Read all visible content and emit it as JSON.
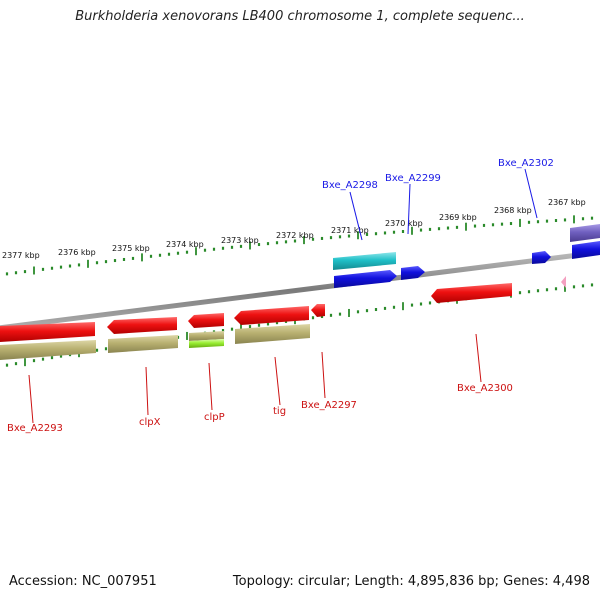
{
  "title": "Burkholderia xenovorans LB400 chromosome 1, complete sequenc...",
  "footer": {
    "accession": "Accession: NC_007951",
    "stats": "Topology: circular; Length: 4,895,836 bp; Genes: 4,498"
  },
  "ticks": [
    {
      "label": "2377 kbp"
    },
    {
      "label": "2376 kbp"
    },
    {
      "label": "2375 kbp"
    },
    {
      "label": "2374 kbp"
    },
    {
      "label": "2373 kbp"
    },
    {
      "label": "2372 kbp"
    },
    {
      "label": "2371 kbp"
    },
    {
      "label": "2370 kbp"
    },
    {
      "label": "2369 kbp"
    },
    {
      "label": "2368 kbp"
    },
    {
      "label": "2367 kbp"
    }
  ],
  "gene_labels": {
    "forward": [
      "Bxe_A2298",
      "Bxe_A2299",
      "Bxe_A2302"
    ],
    "reverse": [
      "Bxe_A2293",
      "clpX",
      "clpP",
      "tig",
      "Bxe_A2297",
      "Bxe_A2300"
    ]
  },
  "colors": {
    "forward_label": "#1a1ae6",
    "reverse_label": "#cc1111",
    "red_feature": "#ee1111",
    "blue_feature": "#1111dd",
    "cyan_feature": "#20c0c8",
    "khaki_feature": "#b8b070",
    "lime_feature": "#99ee33",
    "purple_feature": "#7060c0",
    "pink_feature": "#f4a0c0",
    "tick_color": "#2a8a2a",
    "backbone": "#8a8a8a"
  }
}
